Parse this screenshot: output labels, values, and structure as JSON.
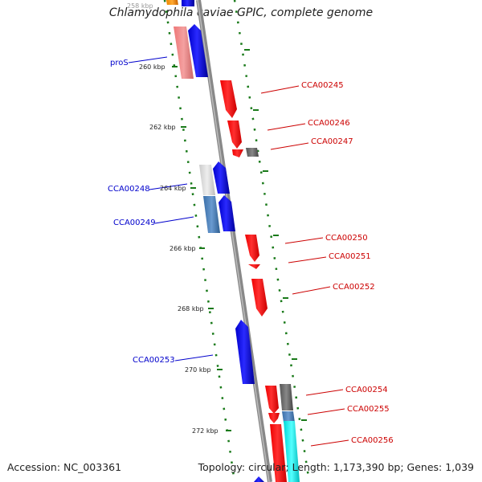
{
  "title": "Chlamydophila caviae GPIC, complete genome",
  "footer": {
    "accession": "Accession: NC_003361",
    "summary": "Topology: circular; Length: 1,173,390 bp; Genes: 1,039"
  },
  "colors": {
    "forward": "#ff0000",
    "reverse": "#0000ff",
    "backbone": "#888888",
    "tick": "#1a7a1a",
    "label_forward": "#cc0000",
    "label_reverse": "#0000cc"
  },
  "kbp_ticks": [
    {
      "label": "258 kbp",
      "kbp": 258
    },
    {
      "label": "260 kbp",
      "kbp": 260
    },
    {
      "label": "262 kbp",
      "kbp": 262
    },
    {
      "label": "264 kbp",
      "kbp": 264
    },
    {
      "label": "266 kbp",
      "kbp": 266
    },
    {
      "label": "268 kbp",
      "kbp": 268
    },
    {
      "label": "270 kbp",
      "kbp": 270
    },
    {
      "label": "272 kbp",
      "kbp": 272
    }
  ],
  "gene_labels": [
    {
      "name": "proS",
      "strand": "reverse"
    },
    {
      "name": "CCA00245",
      "strand": "forward"
    },
    {
      "name": "CCA00246",
      "strand": "forward"
    },
    {
      "name": "CCA00247",
      "strand": "forward"
    },
    {
      "name": "CCA00248",
      "strand": "reverse"
    },
    {
      "name": "CCA00249",
      "strand": "reverse"
    },
    {
      "name": "CCA00250",
      "strand": "forward"
    },
    {
      "name": "CCA00251",
      "strand": "forward"
    },
    {
      "name": "CCA00252",
      "strand": "forward"
    },
    {
      "name": "CCA00253",
      "strand": "reverse"
    },
    {
      "name": "CCA00254",
      "strand": "forward"
    },
    {
      "name": "CCA00255",
      "strand": "forward"
    },
    {
      "name": "CCA00256",
      "strand": "forward"
    }
  ]
}
